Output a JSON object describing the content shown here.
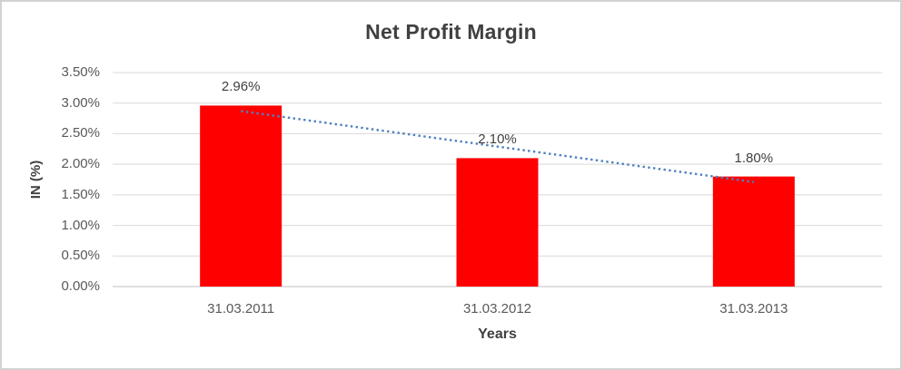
{
  "window": {
    "background_color": "#FFFFFF",
    "border_color": "#D2D2D2"
  },
  "chart_data": {
    "type": "bar",
    "title": "Net Profit Margin",
    "xlabel": "Years",
    "ylabel": "IN (%)",
    "categories": [
      "31.03.2011",
      "31.03.2012",
      "31.03.2013"
    ],
    "values": [
      2.96,
      2.1,
      1.8
    ],
    "data_labels": [
      "2.96%",
      "2.10%",
      "1.80%"
    ],
    "unit": "percent",
    "ylim": [
      0,
      3.5
    ],
    "ytick_step": 0.5,
    "yticks": [
      "3.50%",
      "3.00%",
      "2.50%",
      "2.00%",
      "1.50%",
      "1.00%",
      "0.50%",
      "0.00%"
    ],
    "grid": true,
    "legend_position": "none",
    "bar_color": "#FF0000",
    "gridline_color": "#D9D9D9",
    "axis_line_color": "#BFBFBF",
    "title_color": "#404040",
    "axis_title_color": "#404040",
    "tick_label_color": "#595959",
    "data_label_color": "#404040",
    "trendline": {
      "type": "linear",
      "style": "dotted",
      "color": "#4E81BD",
      "start_value": 2.87,
      "end_value": 1.71
    }
  }
}
